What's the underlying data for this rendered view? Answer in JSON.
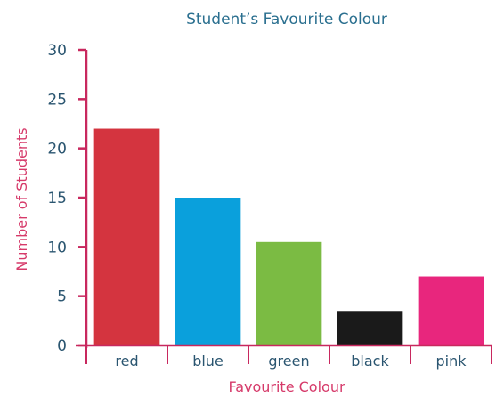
{
  "chart_data": {
    "type": "bar",
    "title": "Student’s Favourite Colour",
    "xlabel": "Favourite Colour",
    "ylabel": "Number of Students",
    "categories": [
      "red",
      "blue",
      "green",
      "black",
      "pink"
    ],
    "values": [
      22,
      15,
      10.5,
      3.5,
      7
    ],
    "colors": [
      "#d4343f",
      "#0aa0dc",
      "#7bbb43",
      "#1a1a1a",
      "#e8267d"
    ],
    "ylim": [
      0,
      30
    ],
    "yticks": [
      0,
      5,
      10,
      15,
      20,
      25,
      30
    ],
    "ytick_labels": [
      "0",
      "5",
      "10",
      "15",
      "20",
      "25",
      "30"
    ],
    "grid": false,
    "axis_color": "#c8285e"
  }
}
